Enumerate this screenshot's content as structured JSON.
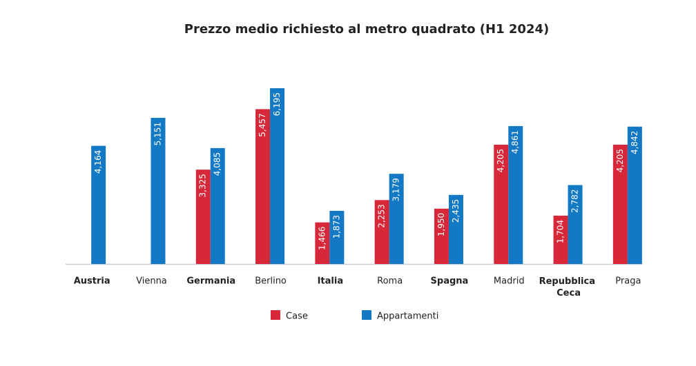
{
  "chart_data": {
    "type": "bar",
    "title": "Prezzo medio richiesto al metro quadrato (H1 2024)",
    "categories": [
      "Austria",
      "Vienna",
      "Germania",
      "Berlino",
      "Italia",
      "Roma",
      "Spagna",
      "Madrid",
      "Repubblica Ceca",
      "Praga"
    ],
    "category_bold": [
      true,
      false,
      true,
      false,
      true,
      false,
      true,
      false,
      true,
      false
    ],
    "series": [
      {
        "name": "Case",
        "color": "#d7283a",
        "values": [
          null,
          null,
          3325,
          5457,
          1466,
          2253,
          1950,
          4205,
          1704,
          4205
        ],
        "value_labels": [
          null,
          null,
          "3,325",
          "5,457",
          "1,466",
          "2,253",
          "1,950",
          "4,205",
          "1,704",
          "4,205"
        ]
      },
      {
        "name": "Appartamenti",
        "color": "#1479c4",
        "values": [
          4164,
          5151,
          4085,
          6195,
          1873,
          3179,
          2435,
          4861,
          2782,
          4842
        ],
        "value_labels": [
          "4,164",
          "5,151",
          "4,085",
          "6,195",
          "1,873",
          "3,179",
          "2,435",
          "4,861",
          "2,782",
          "4,842"
        ]
      }
    ]
  }
}
